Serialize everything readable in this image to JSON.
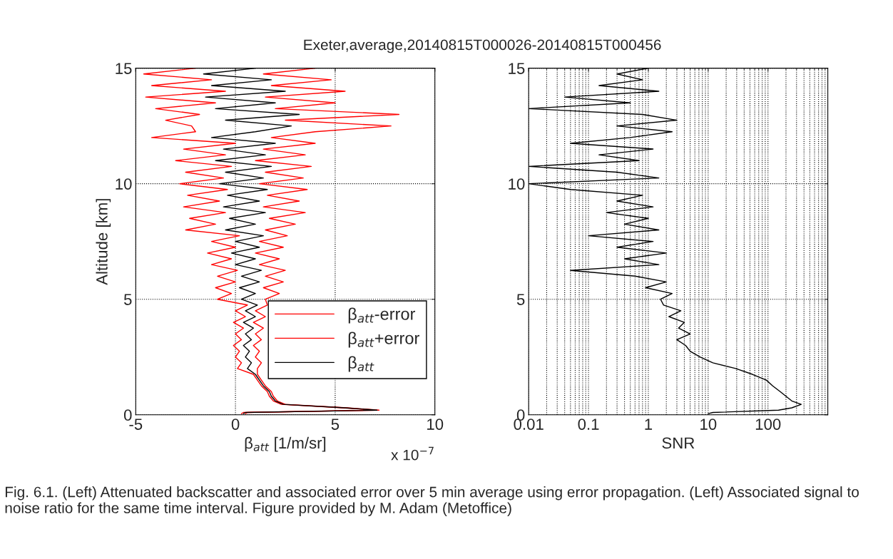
{
  "chart_data": [
    {
      "type": "line",
      "title": "Exeter,average,20140815T000026-20140815T000456",
      "xlabel": "β$_{att}$ [1/m/sr]",
      "ylabel": "Altitude [km]",
      "xlim": [
        -5,
        10
      ],
      "xticks": [
        -5,
        0,
        5,
        10
      ],
      "ylim": [
        0,
        15
      ],
      "yticks": [
        0,
        5,
        10,
        15
      ],
      "grid": true,
      "legend": "bottom right",
      "annotations": [
        "x 10$^{−7}$"
      ],
      "series": [
        {
          "name": "β$_{att}$-error",
          "color": "#ff0000",
          "x": [
            0.3,
            0.4,
            7.0,
            5.4,
            2.3,
            1.9,
            1.7,
            1.6,
            1.3,
            1.1,
            0.9,
            0.1,
            0.3,
            0.0,
            0.2,
            -0.1,
            0.3,
            0.0,
            0.4,
            -0.1,
            0.5,
            0.0,
            0.6,
            -0.9,
            -0.2,
            -1.0,
            0.0,
            -0.9,
            0.1,
            -1.2,
            -0.2,
            -1.4,
            0.0,
            -1.2,
            0.2,
            -2.5,
            -1.0,
            -2.3,
            -0.5,
            -2.6,
            -0.8,
            -2.4,
            -0.4,
            -2.8,
            -0.6,
            -2.5,
            -0.2,
            -3.0,
            -0.5,
            -2.6,
            0.0,
            -4.2,
            -2.0,
            -2.2,
            -3.5,
            -1.8,
            -4.0,
            -1.0,
            -4.5,
            -0.5,
            -4.2,
            -1.2,
            -4.6,
            -2.0
          ],
          "values": [
            0.05,
            0.1,
            0.2,
            0.3,
            0.45,
            0.6,
            0.8,
            1.0,
            1.25,
            1.5,
            1.75,
            2.0,
            2.25,
            2.5,
            2.75,
            3.0,
            3.25,
            3.5,
            3.75,
            4.0,
            4.25,
            4.5,
            4.75,
            5.0,
            5.25,
            5.5,
            5.75,
            6.0,
            6.25,
            6.5,
            6.75,
            7.0,
            7.25,
            7.5,
            7.75,
            8.0,
            8.25,
            8.5,
            8.75,
            9.0,
            9.25,
            9.5,
            9.75,
            10.0,
            10.25,
            10.5,
            10.75,
            11.0,
            11.25,
            11.5,
            11.75,
            12.0,
            12.25,
            12.5,
            12.75,
            13.0,
            13.25,
            13.5,
            13.75,
            14.0,
            14.25,
            14.5,
            14.75,
            15.0
          ]
        },
        {
          "name": "β$_{att}$+error",
          "color": "#ff0000",
          "x": [
            0.5,
            0.6,
            7.2,
            5.6,
            2.5,
            2.1,
            1.9,
            1.8,
            1.5,
            1.3,
            1.1,
            1.1,
            1.3,
            1.0,
            1.2,
            0.9,
            1.3,
            1.0,
            1.4,
            0.9,
            1.5,
            1.0,
            1.6,
            1.5,
            2.2,
            1.4,
            2.4,
            1.5,
            2.5,
            1.2,
            2.2,
            1.0,
            2.4,
            1.2,
            2.6,
            1.5,
            3.0,
            1.7,
            3.5,
            1.4,
            3.2,
            1.6,
            3.6,
            1.2,
            3.4,
            1.5,
            3.8,
            1.0,
            3.5,
            1.4,
            4.0,
            1.8,
            4.0,
            7.8,
            2.5,
            8.2,
            2.0,
            5.0,
            1.5,
            5.5,
            1.8,
            4.8,
            1.4,
            4.0
          ],
          "values": [
            0.05,
            0.1,
            0.2,
            0.3,
            0.45,
            0.6,
            0.8,
            1.0,
            1.25,
            1.5,
            1.75,
            2.0,
            2.25,
            2.5,
            2.75,
            3.0,
            3.25,
            3.5,
            3.75,
            4.0,
            4.25,
            4.5,
            4.75,
            5.0,
            5.25,
            5.5,
            5.75,
            6.0,
            6.25,
            6.5,
            6.75,
            7.0,
            7.25,
            7.5,
            7.75,
            8.0,
            8.25,
            8.5,
            8.75,
            9.0,
            9.25,
            9.5,
            9.75,
            10.0,
            10.25,
            10.5,
            10.75,
            11.0,
            11.25,
            11.5,
            11.75,
            12.0,
            12.25,
            12.5,
            12.75,
            13.0,
            13.25,
            13.5,
            13.75,
            14.0,
            14.25,
            14.5,
            14.75,
            15.0
          ]
        },
        {
          "name": "β$_{att}$",
          "color": "#000000",
          "x": [
            0.4,
            0.5,
            7.1,
            5.5,
            2.4,
            2.0,
            1.8,
            1.7,
            1.4,
            1.2,
            1.0,
            0.6,
            0.8,
            0.5,
            0.7,
            0.4,
            0.8,
            0.5,
            0.9,
            0.4,
            1.0,
            0.5,
            1.1,
            0.3,
            1.0,
            0.2,
            1.2,
            0.3,
            1.3,
            0.0,
            1.0,
            -0.2,
            1.2,
            0.0,
            1.4,
            -0.5,
            1.0,
            -0.3,
            1.5,
            -0.6,
            1.2,
            -0.4,
            1.6,
            -0.8,
            1.4,
            -0.5,
            1.8,
            -1.0,
            1.5,
            -0.6,
            2.0,
            -1.2,
            1.0,
            2.8,
            -0.5,
            3.2,
            -1.0,
            2.0,
            -1.5,
            2.5,
            -1.2,
            1.8,
            -1.6,
            1.0
          ],
          "values": [
            0.05,
            0.1,
            0.2,
            0.3,
            0.45,
            0.6,
            0.8,
            1.0,
            1.25,
            1.5,
            1.75,
            2.0,
            2.25,
            2.5,
            2.75,
            3.0,
            3.25,
            3.5,
            3.75,
            4.0,
            4.25,
            4.5,
            4.75,
            5.0,
            5.25,
            5.5,
            5.75,
            6.0,
            6.25,
            6.5,
            6.75,
            7.0,
            7.25,
            7.5,
            7.75,
            8.0,
            8.25,
            8.5,
            8.75,
            9.0,
            9.25,
            9.5,
            9.75,
            10.0,
            10.25,
            10.5,
            10.75,
            11.0,
            11.25,
            11.5,
            11.75,
            12.0,
            12.25,
            12.5,
            12.75,
            13.0,
            13.25,
            13.5,
            13.75,
            14.0,
            14.25,
            14.5,
            14.75,
            15.0
          ]
        }
      ]
    },
    {
      "type": "line",
      "xlabel": "SNR",
      "log": "x",
      "xlim": [
        0.01,
        1000
      ],
      "xticks": [
        0.01,
        0.1,
        1,
        10,
        100
      ],
      "ylim": [
        0,
        15
      ],
      "yticks": [
        0,
        5,
        10,
        15
      ],
      "grid": true,
      "annotations": [
        "Fig. 6.1. (Left) Attenuated backscatter and associated error over 5 min average using error propagation. (Left) Associated signal to noise ratio for the same time interval. Figure provided by M. Adam (Metoffice)"
      ],
      "series": [
        {
          "color": "#000000",
          "x": [
            10,
            12,
            150,
            250,
            360,
            250,
            200,
            160,
            120,
            94,
            55,
            29,
            12,
            7.3,
            5,
            4.2,
            3.0,
            5.0,
            3.2,
            4.0,
            2.2,
            3.5,
            1.8,
            1.6,
            2.5,
            0.9,
            2.0,
            0.6,
            0.05,
            1.5,
            0.4,
            2.0,
            0.3,
            1.2,
            0.1,
            1.5,
            0.4,
            1.0,
            0.2,
            1.2,
            0.3,
            0.8,
            0.05,
            0.01,
            1.5,
            0.3,
            0.01,
            0.7,
            0.15,
            1.2,
            0.05,
            0.5,
            2.5,
            0.3,
            3.0,
            0.8,
            0.01,
            0.5,
            0.04,
            1.5,
            0.15,
            0.8,
            0.3,
            1.0
          ],
          "values": [
            0.05,
            0.1,
            0.2,
            0.3,
            0.45,
            0.6,
            0.8,
            1.0,
            1.25,
            1.5,
            1.75,
            2.0,
            2.25,
            2.5,
            2.75,
            3.0,
            3.25,
            3.5,
            3.75,
            4.0,
            4.25,
            4.5,
            4.75,
            5.0,
            5.25,
            5.5,
            5.75,
            6.0,
            6.25,
            6.5,
            6.75,
            7.0,
            7.25,
            7.5,
            7.75,
            8.0,
            8.25,
            8.5,
            8.75,
            9.0,
            9.25,
            9.5,
            9.75,
            10.0,
            10.25,
            10.5,
            10.75,
            11.0,
            11.25,
            11.5,
            11.75,
            12.0,
            12.25,
            12.5,
            12.75,
            13.0,
            13.25,
            13.5,
            13.75,
            14.0,
            14.25,
            14.5,
            14.75,
            15.0
          ]
        }
      ]
    }
  ]
}
